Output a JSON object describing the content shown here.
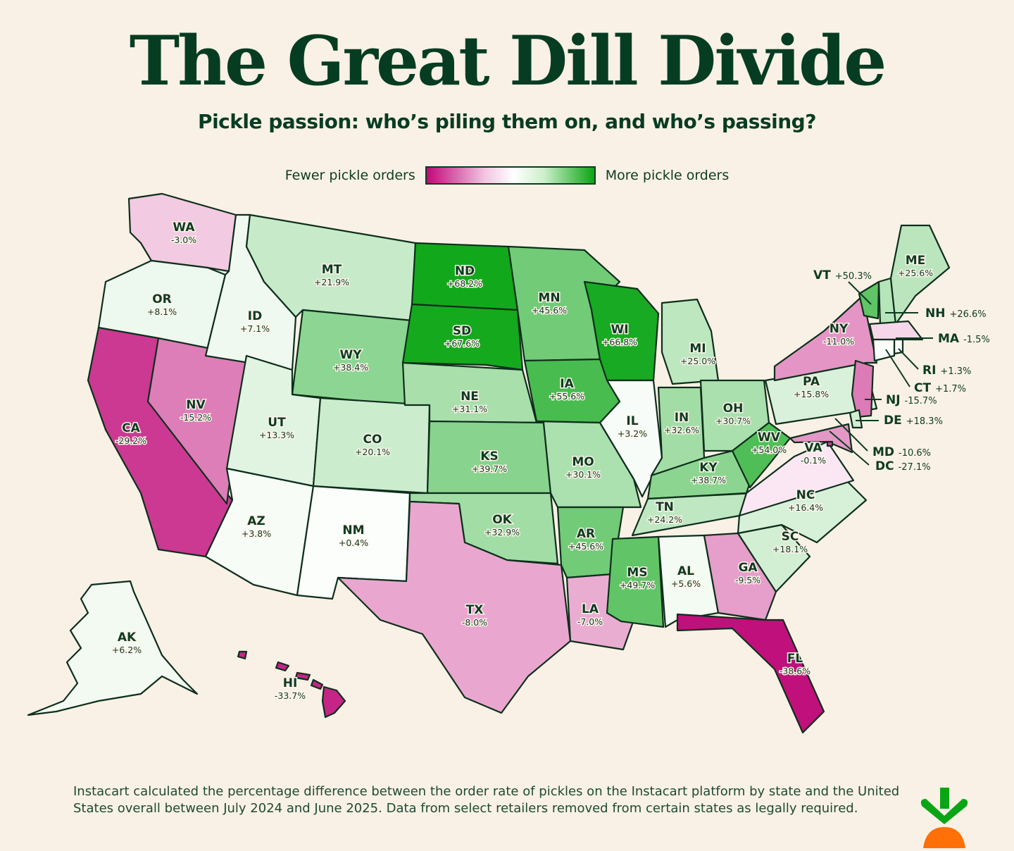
{
  "title": "The Great Dill Divide",
  "subtitle": "Pickle passion: who’s piling them on, and who’s passing?",
  "legend": {
    "low_label": "Fewer pickle orders",
    "high_label": "More pickle orders",
    "low_color": "#C0087A",
    "mid_color": "#FFFFFF",
    "high_color": "#0AA514"
  },
  "states": [
    {
      "abbr": "WA",
      "label": "-3.0%",
      "value": -3.0
    },
    {
      "abbr": "OR",
      "label": "+8.1%",
      "value": 8.1
    },
    {
      "abbr": "CA",
      "label": "-29.2%",
      "value": -29.2
    },
    {
      "abbr": "NV",
      "label": "-15.2%",
      "value": -15.2
    },
    {
      "abbr": "ID",
      "label": "+7.1%",
      "value": 7.1
    },
    {
      "abbr": "MT",
      "label": "+21.9%",
      "value": 21.9
    },
    {
      "abbr": "WY",
      "label": "+38.4%",
      "value": 38.4
    },
    {
      "abbr": "UT",
      "label": "+13.3%",
      "value": 13.3
    },
    {
      "abbr": "CO",
      "label": "+20.1%",
      "value": 20.1
    },
    {
      "abbr": "AZ",
      "label": "+3.8%",
      "value": 3.8
    },
    {
      "abbr": "NM",
      "label": "+0.4%",
      "value": 0.4
    },
    {
      "abbr": "ND",
      "label": "+68.2%",
      "value": 68.2
    },
    {
      "abbr": "SD",
      "label": "+67.6%",
      "value": 67.6
    },
    {
      "abbr": "NE",
      "label": "+31.1%",
      "value": 31.1
    },
    {
      "abbr": "KS",
      "label": "+39.7%",
      "value": 39.7
    },
    {
      "abbr": "OK",
      "label": "+32.9%",
      "value": 32.9
    },
    {
      "abbr": "TX",
      "label": "-8.0%",
      "value": -8.0
    },
    {
      "abbr": "MN",
      "label": "+45.6%",
      "value": 45.6
    },
    {
      "abbr": "IA",
      "label": "+55.6%",
      "value": 55.6
    },
    {
      "abbr": "MO",
      "label": "+30.1%",
      "value": 30.1
    },
    {
      "abbr": "AR",
      "label": "+45.6%",
      "value": 45.6
    },
    {
      "abbr": "LA",
      "label": "-7.0%",
      "value": -7.0
    },
    {
      "abbr": "WI",
      "label": "+66.8%",
      "value": 66.8
    },
    {
      "abbr": "IL",
      "label": "+3.2%",
      "value": 3.2
    },
    {
      "abbr": "MI",
      "label": "+25.0%",
      "value": 25.0
    },
    {
      "abbr": "IN",
      "label": "+32.6%",
      "value": 32.6
    },
    {
      "abbr": "OH",
      "label": "+30.7%",
      "value": 30.7
    },
    {
      "abbr": "KY",
      "label": "+38.7%",
      "value": 38.7
    },
    {
      "abbr": "TN",
      "label": "+24.2%",
      "value": 24.2
    },
    {
      "abbr": "MS",
      "label": "+49.7%",
      "value": 49.7
    },
    {
      "abbr": "AL",
      "label": "+5.6%",
      "value": 5.6
    },
    {
      "abbr": "GA",
      "label": "-9.5%",
      "value": -9.5
    },
    {
      "abbr": "FL",
      "label": "-38.6%",
      "value": -38.6
    },
    {
      "abbr": "SC",
      "label": "+18.1%",
      "value": 18.1
    },
    {
      "abbr": "NC",
      "label": "+16.4%",
      "value": 16.4
    },
    {
      "abbr": "VA",
      "label": "-0.1%",
      "value": -0.1
    },
    {
      "abbr": "WV",
      "label": "+54.0%",
      "value": 54.0
    },
    {
      "abbr": "PA",
      "label": "+15.8%",
      "value": 15.8
    },
    {
      "abbr": "NY",
      "label": "-11.0%",
      "value": -11.0
    },
    {
      "abbr": "VT",
      "label": "+50.3%",
      "value": 50.3
    },
    {
      "abbr": "NH",
      "label": "+26.6%",
      "value": 26.6
    },
    {
      "abbr": "ME",
      "label": "+25.6%",
      "value": 25.6
    },
    {
      "abbr": "MA",
      "label": "-1.5%",
      "value": -1.5
    },
    {
      "abbr": "RI",
      "label": "+1.3%",
      "value": 1.3
    },
    {
      "abbr": "CT",
      "label": "+1.7%",
      "value": 1.7
    },
    {
      "abbr": "NJ",
      "label": "-15.7%",
      "value": -15.7
    },
    {
      "abbr": "DE",
      "label": "+18.3%",
      "value": 18.3
    },
    {
      "abbr": "MD",
      "label": "-10.6%",
      "value": -10.6
    },
    {
      "abbr": "DC",
      "label": "-27.1%",
      "value": -27.1
    },
    {
      "abbr": "AK",
      "label": "+6.2%",
      "value": 6.2
    },
    {
      "abbr": "HI",
      "label": "-33.7%",
      "value": -33.7
    }
  ],
  "footnote": "Instacart calculated the percentage difference between the order rate of pickles on the Instacart platform by state and the United States overall between July 2024 and June 2025. Data from select retailers removed from certain states as legally required.",
  "logo": {
    "name": "Instacart",
    "icon": "carrot-icon",
    "leaf_color": "#0AA514",
    "carrot_color": "#FF7009"
  }
}
